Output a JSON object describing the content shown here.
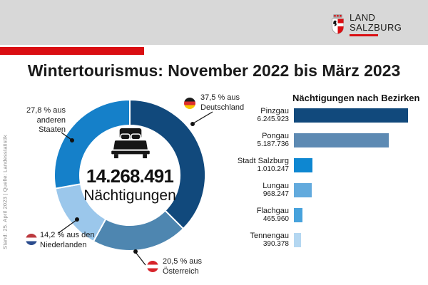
{
  "header": {
    "logo_line1": "LAND",
    "logo_line2": "SALZBURG"
  },
  "title": "Wintertourismus: November 2022 bis März 2023",
  "footer_note": "Stand: 25. April 2023 | Quelle: Landesstatistik",
  "colors": {
    "brand_red": "#da0e12",
    "header_gray": "#d8d8d8",
    "dark_blue": "#11497c",
    "steel_blue": "#4e86b0",
    "light_blue": "#9bc7eb",
    "bright_blue": "#1580c9"
  },
  "donut": {
    "center_value": "14.268.491",
    "center_label": "Nächtigungen",
    "segments": [
      {
        "id": "deutschland",
        "pct": 37.5,
        "color": "#11497c",
        "flag": "flag-germany-icon",
        "label_lines": [
          "37,5 % aus",
          "Deutschland"
        ]
      },
      {
        "id": "oesterreich",
        "pct": 20.5,
        "color": "#4e86b0",
        "flag": "flag-austria-icon",
        "label_lines": [
          "20,5 % aus",
          "Österreich"
        ]
      },
      {
        "id": "niederlande",
        "pct": 14.2,
        "color": "#9bc7eb",
        "flag": "flag-netherlands-icon",
        "label_lines": [
          "14,2 % aus den",
          "Niederlanden"
        ]
      },
      {
        "id": "andere-staaten",
        "pct": 27.8,
        "color": "#1580c9",
        "flag": null,
        "label_lines": [
          "27,8 % aus",
          "anderen",
          "Staaten"
        ]
      }
    ]
  },
  "bars": {
    "title": "Nächtigungen nach Bezirken",
    "items": [
      {
        "label": "Pinzgau",
        "value": 6245923,
        "value_label": "6.245.923",
        "color": "#11497c"
      },
      {
        "label": "Pongau",
        "value": 5187736,
        "value_label": "5.187.736",
        "color": "#5d8ab3"
      },
      {
        "label": "Stadt Salzburg",
        "value": 1010247,
        "value_label": "1.010.247",
        "color": "#0e87d1"
      },
      {
        "label": "Lungau",
        "value": 968247,
        "value_label": "968.247",
        "color": "#62aadd"
      },
      {
        "label": "Flachgau",
        "value": 465960,
        "value_label": "465.960",
        "color": "#47a2dc"
      },
      {
        "label": "Tennengau",
        "value": 390378,
        "value_label": "390.378",
        "color": "#b4d7f1"
      }
    ]
  },
  "chart_data": [
    {
      "type": "pie",
      "subtype": "donut",
      "title": "14.268.491 Nächtigungen",
      "labels": [
        "Deutschland",
        "Österreich",
        "Niederlande",
        "andere Staaten"
      ],
      "values": [
        37.5,
        20.5,
        14.2,
        27.8
      ],
      "unit": "%",
      "colors": [
        "#11497c",
        "#4e86b0",
        "#9bc7eb",
        "#1580c9"
      ],
      "start_angle": "top",
      "direction": "clockwise"
    },
    {
      "type": "bar",
      "orientation": "horizontal",
      "title": "Nächtigungen nach Bezirken",
      "categories": [
        "Pinzgau",
        "Pongau",
        "Stadt Salzburg",
        "Lungau",
        "Flachgau",
        "Tennengau"
      ],
      "values": [
        6245923,
        5187736,
        1010247,
        968247,
        465960,
        390378
      ],
      "xlabel": "",
      "ylabel": "",
      "xlim": [
        0,
        6245923
      ],
      "grid": false,
      "legend": false
    }
  ]
}
